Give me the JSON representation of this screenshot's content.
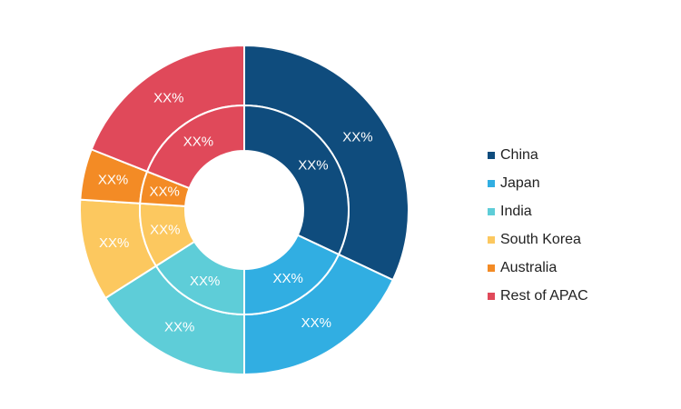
{
  "chart_data": {
    "type": "donut",
    "categories": [
      "China",
      "Japan",
      "India",
      "South Korea",
      "Australia",
      "Rest of APAC"
    ],
    "colors": [
      "#0f4c7d",
      "#31aee2",
      "#5ecdd8",
      "#fcc85f",
      "#f38b25",
      "#e0495a"
    ],
    "series": [
      {
        "values": [
          32,
          18,
          16,
          10,
          5,
          19
        ],
        "value_labels": [
          "XX%",
          "XX%",
          "XX%",
          "XX%",
          "XX%",
          "XX%"
        ]
      },
      {
        "values": [
          32,
          18,
          16,
          10,
          5,
          19
        ],
        "value_labels": [
          "XX%",
          "XX%",
          "XX%",
          "XX%",
          "XX%",
          "XX%"
        ]
      }
    ]
  }
}
